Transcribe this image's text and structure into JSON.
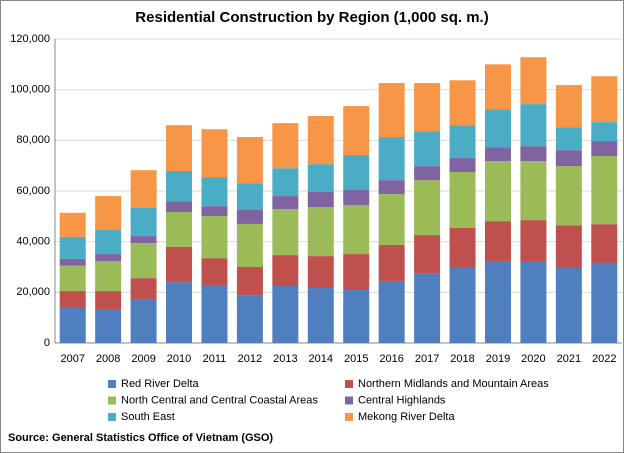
{
  "chart_data": {
    "type": "stacked-bar",
    "title": "Residential Construction by Region (1,000 sq. m.)",
    "source": "Source: General Statistics Office of Vietnam (GSO)",
    "categories": [
      "2007",
      "2008",
      "2009",
      "2010",
      "2011",
      "2012",
      "2013",
      "2014",
      "2015",
      "2016",
      "2017",
      "2018",
      "2019",
      "2020",
      "2021",
      "2022"
    ],
    "series": [
      {
        "name": "Red River Delta",
        "color": "#4f7fbf",
        "values": [
          14000,
          13400,
          17400,
          24000,
          22900,
          18900,
          22500,
          21700,
          20900,
          24500,
          27600,
          30000,
          32000,
          32000,
          30000,
          31600
        ]
      },
      {
        "name": "Northern Midlands and Mountain Areas",
        "color": "#c0504d",
        "values": [
          6500,
          7100,
          8200,
          13900,
          10600,
          11100,
          12200,
          12600,
          14200,
          14200,
          15000,
          15400,
          16100,
          16500,
          16500,
          15300
        ]
      },
      {
        "name": "North Central and Central Coastal Areas",
        "color": "#9bbb59",
        "values": [
          10000,
          11800,
          13800,
          13800,
          16600,
          17000,
          18200,
          19300,
          19300,
          20100,
          21700,
          22100,
          23700,
          23300,
          23300,
          26900
        ]
      },
      {
        "name": "Central Highlands",
        "color": "#8064a2",
        "values": [
          2700,
          2800,
          2800,
          4300,
          3900,
          5500,
          5100,
          6000,
          6000,
          5500,
          5500,
          5500,
          5500,
          5900,
          6300,
          5900
        ]
      },
      {
        "name": "South East",
        "color": "#4bacc6",
        "values": [
          8700,
          9500,
          11400,
          11900,
          11500,
          10600,
          11000,
          11000,
          13800,
          17000,
          13800,
          13000,
          15000,
          16600,
          9100,
          7500
        ]
      },
      {
        "name": "Mekong River Delta",
        "color": "#f79646",
        "values": [
          9500,
          13400,
          14600,
          18100,
          18900,
          18200,
          17800,
          19000,
          19300,
          21300,
          19000,
          17700,
          17700,
          18500,
          16600,
          18100
        ]
      }
    ],
    "ylim": [
      0,
      120000
    ],
    "yticks": [
      0,
      {
        "value": 20000,
        "label": "20,000"
      },
      {
        "value": 40000,
        "label": "40,000"
      },
      {
        "value": 60000,
        "label": "60,000"
      },
      {
        "value": 80000,
        "label": "80,000"
      },
      {
        "value": 100000,
        "label": "100,000"
      },
      {
        "value": 120000,
        "label": "120,000"
      }
    ],
    "grid": true
  }
}
